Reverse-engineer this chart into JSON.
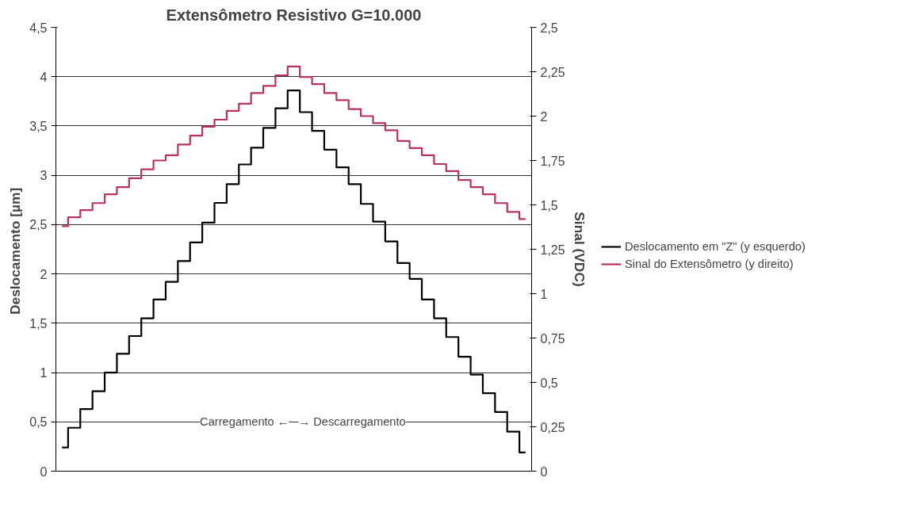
{
  "chart_data": {
    "type": "step",
    "title": "Extensômetro Resistivo G=10.000",
    "ylabel": "Deslocamento  [µm]",
    "y2label": "Sinal (VDC)",
    "categories": [
      null,
      null,
      null,
      null,
      null,
      null,
      null,
      null,
      null,
      null,
      null,
      null,
      null,
      null,
      null,
      null,
      null,
      null,
      null,
      null,
      null,
      null,
      null,
      null,
      null,
      null,
      null,
      null,
      null,
      null,
      null,
      null,
      null,
      null,
      null,
      null,
      null,
      null,
      null
    ],
    "series": [
      {
        "name": "Deslocamento em \"Z\" (y esquerdo)",
        "color": "#000000",
        "values": [
          0.24,
          0.44,
          0.63,
          0.81,
          1.0,
          1.19,
          1.37,
          1.55,
          1.74,
          1.92,
          2.13,
          2.32,
          2.52,
          2.72,
          2.91,
          3.11,
          3.28,
          3.48,
          3.68,
          3.86,
          3.64,
          3.45,
          3.26,
          3.08,
          2.91,
          2.71,
          2.53,
          2.33,
          2.11,
          1.95,
          1.74,
          1.55,
          1.36,
          1.16,
          0.98,
          0.79,
          0.6,
          0.4,
          0.19
        ]
      },
      {
        "name": "Sinal do Extensômetro (y direito)",
        "color": "#b8325e",
        "axis": "y2",
        "values": [
          1.38,
          1.43,
          1.47,
          1.51,
          1.56,
          1.6,
          1.65,
          1.7,
          1.75,
          1.78,
          1.84,
          1.89,
          1.94,
          1.98,
          2.03,
          2.07,
          2.13,
          2.17,
          2.23,
          2.28,
          2.22,
          2.18,
          2.13,
          2.09,
          2.04,
          2.0,
          1.96,
          1.92,
          1.86,
          1.82,
          1.78,
          1.73,
          1.69,
          1.64,
          1.6,
          1.56,
          1.51,
          1.46,
          1.42
        ]
      }
    ],
    "ylim": [
      0,
      4.5
    ],
    "yticks": [
      0,
      {
        "value": 0.5,
        "label": "0,5"
      },
      1,
      {
        "value": 1.5,
        "label": "1,5"
      },
      2,
      {
        "value": 2.5,
        "label": "2,5"
      },
      3,
      {
        "value": 3.5,
        "label": "3,5"
      },
      4,
      {
        "value": 4.5,
        "label": "4,5"
      }
    ],
    "y2lim": [
      0,
      2.5
    ],
    "y2ticks": [
      0,
      {
        "value": 0.25,
        "label": "0,25"
      },
      {
        "value": 0.5,
        "label": "0,5"
      },
      {
        "value": 0.75,
        "label": "0,75"
      },
      1,
      {
        "value": 1.25,
        "label": "1,25"
      },
      {
        "value": 1.5,
        "label": "1,5"
      },
      {
        "value": 1.75,
        "label": "1,75"
      },
      2,
      {
        "value": 2.25,
        "label": "2,25"
      },
      {
        "value": 2.5,
        "label": "2,5"
      }
    ],
    "annotations": [
      "Carregamento ←",
      "→ Descarregamento"
    ],
    "grid": "y",
    "legend": "right",
    "line_style": "solid",
    "tick_labels": "y"
  }
}
